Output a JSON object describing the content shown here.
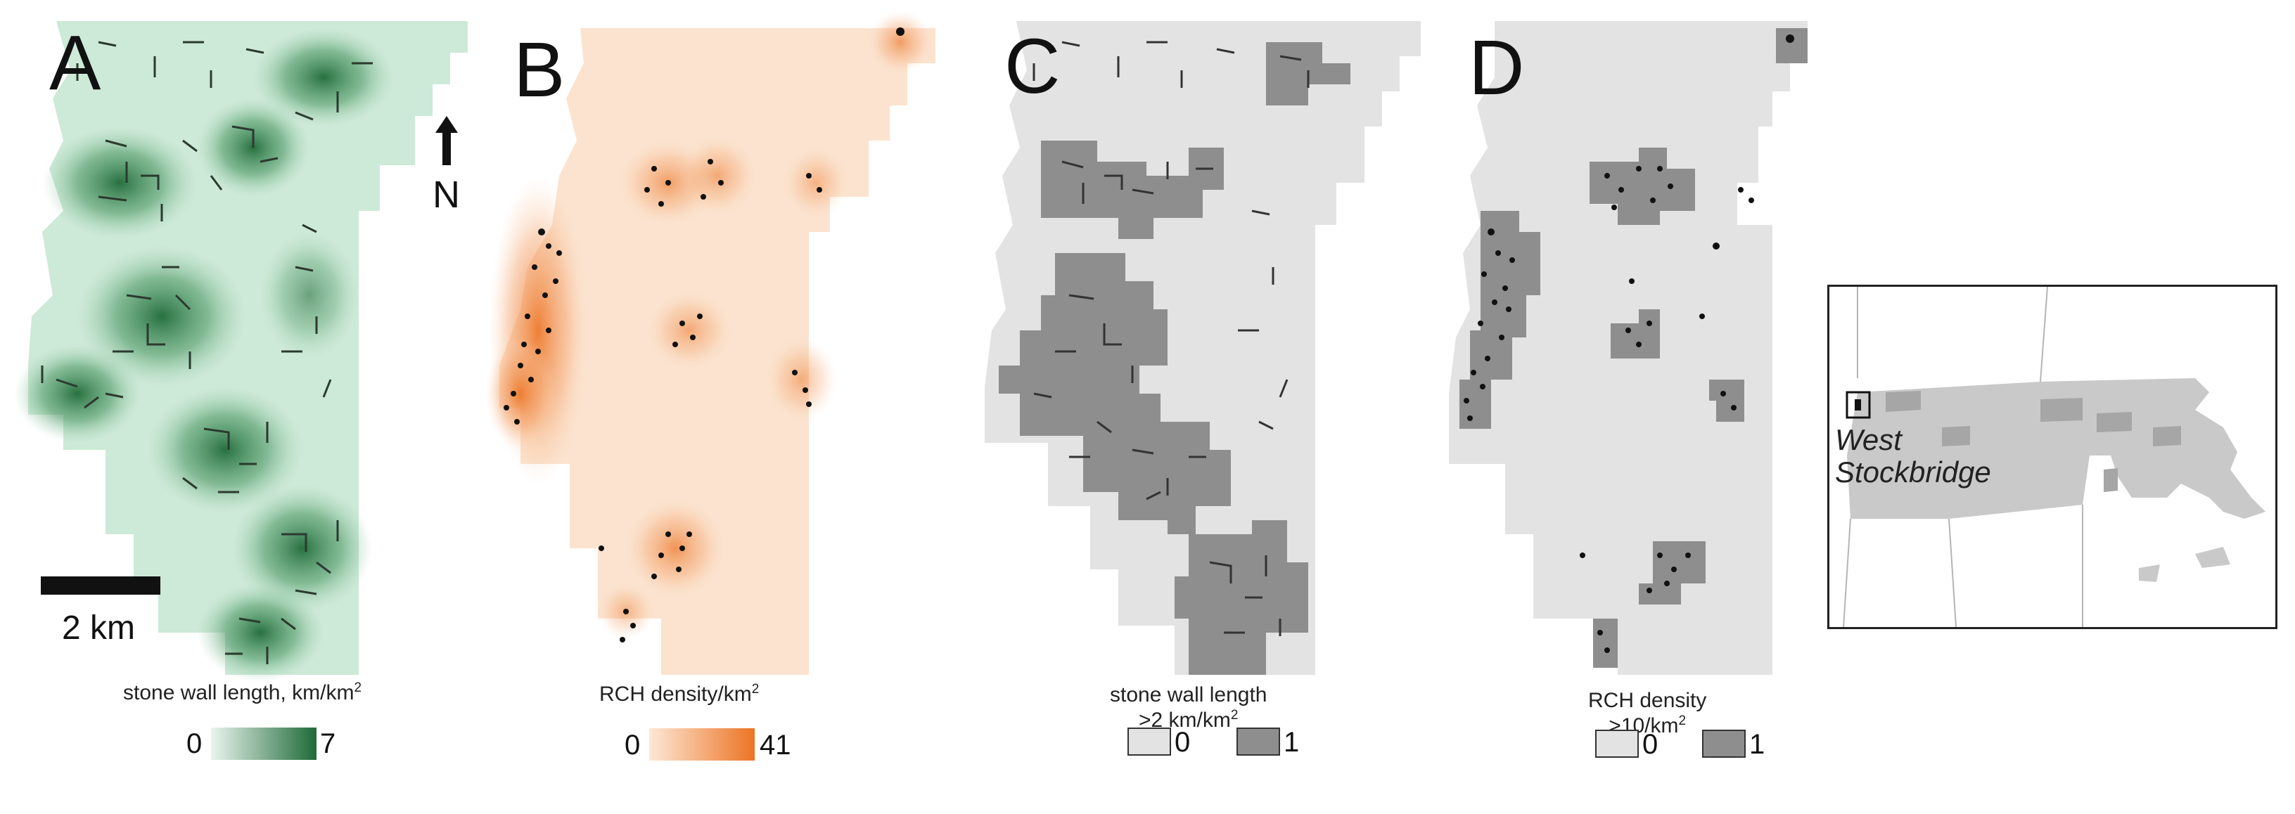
{
  "figure": {
    "panels": [
      {
        "letter": "A",
        "legend_title": "stone wall length, km/km",
        "legend_unit_power": "2",
        "legend_min": "0",
        "legend_max": "7",
        "colors": {
          "low": "#e9f5ee",
          "high": "#1f6a38",
          "walls": "#2b3a2f"
        }
      },
      {
        "letter": "B",
        "legend_title": "RCH density/km",
        "legend_unit_power": "2",
        "legend_min": "0",
        "legend_max": "41",
        "colors": {
          "low": "#fde8d6",
          "high": "#ec7424",
          "points": "#111111"
        }
      },
      {
        "letter": "C",
        "legend_title_line1": "stone wall length",
        "legend_title_line2": ">2 km/km",
        "legend_unit_power": "2",
        "class_0": "0",
        "class_1": "1",
        "colors": {
          "class0": "#e3e3e3",
          "class1": "#8e8e8e"
        }
      },
      {
        "letter": "D",
        "legend_title_line1": "RCH density",
        "legend_title_line2": ">10/km",
        "legend_unit_power": "2",
        "class_0": "0",
        "class_1": "1",
        "colors": {
          "class0": "#e3e3e3",
          "class1": "#8e8e8e"
        }
      }
    ],
    "north_arrow": {
      "label": "N",
      "icon": "north-arrow-icon"
    },
    "scale_bar": {
      "label": "2 km"
    },
    "inset": {
      "place_line1": "West",
      "place_line2": "Stockbridge",
      "colors": {
        "state": "#c9c9c9",
        "darker": "#a6a6a6",
        "border": "#222222"
      }
    }
  }
}
